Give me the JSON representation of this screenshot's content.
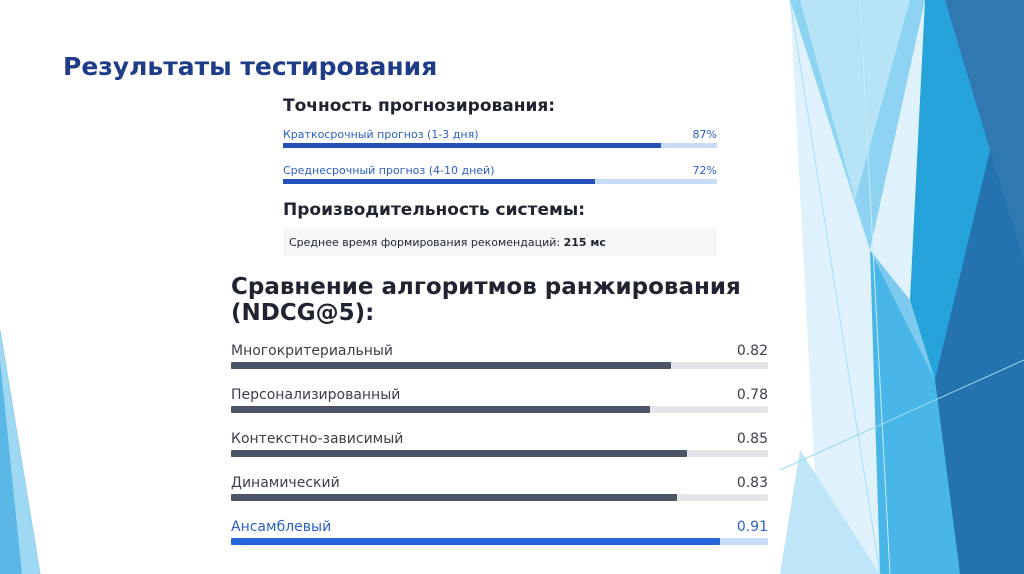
{
  "slide": {
    "title": "Результаты тестирования"
  },
  "accuracy": {
    "heading": "Точность прогнозирования:",
    "items": [
      {
        "label": "Краткосрочный прогноз (1-3 дня)",
        "value_text": "87%",
        "value": 87
      },
      {
        "label": "Среднесрочный прогноз (4-10 дней)",
        "value_text": "72%",
        "value": 72
      }
    ]
  },
  "performance": {
    "heading": "Производительность системы:",
    "label": "Среднее время формирования рекомендаций:",
    "value": "215 мс"
  },
  "comparison": {
    "heading_line1": "Сравнение алгоритмов ранжирования",
    "heading_line2": "(NDCG@5):",
    "items": [
      {
        "label": "Многокритериальный",
        "value_text": "0.82",
        "value": 0.82
      },
      {
        "label": "Персонализированный",
        "value_text": "0.78",
        "value": 0.78
      },
      {
        "label": "Контекстно-зависимый",
        "value_text": "0.85",
        "value": 0.85
      },
      {
        "label": "Динамический",
        "value_text": "0.83",
        "value": 0.83
      },
      {
        "label": "Ансамблевый",
        "value_text": "0.91",
        "value": 0.91
      }
    ]
  },
  "colors": {
    "title": "#1f3c88",
    "accent_blue": "#2463d8",
    "bar_dark": "#4b5566",
    "track_light": "#e3e5e9",
    "track_blue": "#c9dcf5"
  }
}
